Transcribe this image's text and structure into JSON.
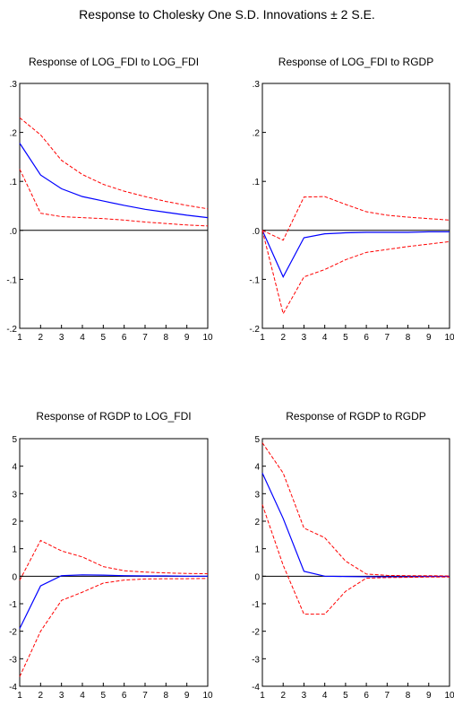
{
  "title": "Response to Cholesky One S.D. Innovations ± 2 S.E.",
  "colors": {
    "response": "#0000ff",
    "band": "#ff0000",
    "axis": "#000000",
    "zero": "#000000"
  },
  "chart_data": [
    {
      "type": "line",
      "title": "Response of LOG_FDI to LOG_FDI",
      "x": [
        1,
        2,
        3,
        4,
        5,
        6,
        7,
        8,
        9,
        10
      ],
      "ylim": [
        -0.2,
        0.3
      ],
      "yticks": [
        0.3,
        0.2,
        0.1,
        0.0,
        -0.1,
        -0.2
      ],
      "ytick_labels": [
        ".3",
        ".2",
        ".1",
        ".0",
        "-.1",
        "-.2"
      ],
      "series": [
        {
          "role": "response",
          "values": [
            0.178,
            0.113,
            0.085,
            0.069,
            0.06,
            0.051,
            0.043,
            0.037,
            0.031,
            0.026
          ]
        },
        {
          "role": "upper",
          "values": [
            0.23,
            0.195,
            0.143,
            0.114,
            0.094,
            0.08,
            0.069,
            0.059,
            0.051,
            0.044
          ]
        },
        {
          "role": "lower",
          "values": [
            0.125,
            0.035,
            0.028,
            0.026,
            0.024,
            0.021,
            0.017,
            0.014,
            0.011,
            0.009
          ]
        }
      ]
    },
    {
      "type": "line",
      "title": "Response of LOG_FDI to RGDP",
      "x": [
        1,
        2,
        3,
        4,
        5,
        6,
        7,
        8,
        9,
        10
      ],
      "ylim": [
        -0.2,
        0.3
      ],
      "yticks": [
        0.3,
        0.2,
        0.1,
        0.0,
        -0.1,
        -0.2
      ],
      "ytick_labels": [
        ".3",
        ".2",
        ".1",
        ".0",
        "-.1",
        "-.2"
      ],
      "series": [
        {
          "role": "response",
          "values": [
            0.0,
            -0.095,
            -0.015,
            -0.007,
            -0.005,
            -0.004,
            -0.004,
            -0.004,
            -0.003,
            -0.003
          ]
        },
        {
          "role": "upper",
          "values": [
            0.0,
            -0.02,
            0.068,
            0.069,
            0.053,
            0.038,
            0.031,
            0.027,
            0.024,
            0.021
          ]
        },
        {
          "role": "lower",
          "values": [
            0.0,
            -0.17,
            -0.095,
            -0.08,
            -0.06,
            -0.045,
            -0.039,
            -0.033,
            -0.028,
            -0.023
          ]
        }
      ]
    },
    {
      "type": "line",
      "title": "Response of RGDP to LOG_FDI",
      "x": [
        1,
        2,
        3,
        4,
        5,
        6,
        7,
        8,
        9,
        10
      ],
      "ylim": [
        -4,
        5
      ],
      "yticks": [
        5,
        4,
        3,
        2,
        1,
        0,
        -1,
        -2,
        -3,
        -4
      ],
      "ytick_labels": [
        "5",
        "4",
        "3",
        "2",
        "1",
        "0",
        "-1",
        "-2",
        "-3",
        "-4"
      ],
      "series": [
        {
          "role": "response",
          "values": [
            -1.9,
            -0.35,
            0.02,
            0.05,
            0.04,
            0.02,
            0.01,
            0.01,
            0.0,
            0.0
          ]
        },
        {
          "role": "upper",
          "values": [
            -0.15,
            1.3,
            0.92,
            0.7,
            0.35,
            0.2,
            0.15,
            0.12,
            0.1,
            0.09
          ]
        },
        {
          "role": "lower",
          "values": [
            -3.65,
            -2.0,
            -0.88,
            -0.58,
            -0.25,
            -0.14,
            -0.1,
            -0.09,
            -0.09,
            -0.08
          ]
        }
      ]
    },
    {
      "type": "line",
      "title": "Response of RGDP to RGDP",
      "x": [
        1,
        2,
        3,
        4,
        5,
        6,
        7,
        8,
        9,
        10
      ],
      "ylim": [
        -4,
        5
      ],
      "yticks": [
        5,
        4,
        3,
        2,
        1,
        0,
        -1,
        -2,
        -3,
        -4
      ],
      "ytick_labels": [
        "5",
        "4",
        "3",
        "2",
        "1",
        "0",
        "-1",
        "-2",
        "-3",
        "-4"
      ],
      "series": [
        {
          "role": "response",
          "values": [
            3.75,
            2.1,
            0.18,
            0.0,
            -0.01,
            -0.02,
            -0.02,
            -0.02,
            -0.01,
            -0.01
          ]
        },
        {
          "role": "upper",
          "values": [
            4.85,
            3.75,
            1.75,
            1.4,
            0.55,
            0.08,
            0.03,
            0.02,
            0.02,
            0.01
          ]
        },
        {
          "role": "lower",
          "values": [
            2.6,
            0.4,
            -1.38,
            -1.38,
            -0.55,
            -0.07,
            -0.05,
            -0.04,
            -0.03,
            -0.03
          ]
        }
      ]
    }
  ]
}
